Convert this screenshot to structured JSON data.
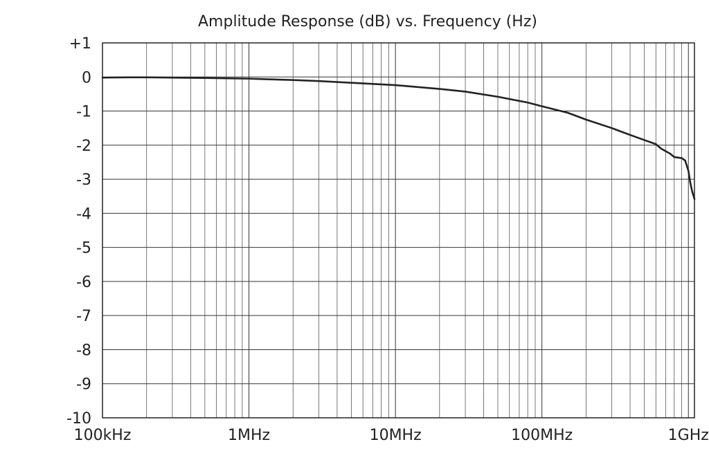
{
  "chart_data": {
    "type": "line",
    "title": "Amplitude Response (dB) vs. Frequency (Hz)",
    "xlabel": "",
    "ylabel": "",
    "x_scale": "log",
    "xlim": [
      100000,
      1100000000
    ],
    "ylim": [
      -10,
      1
    ],
    "grid": true,
    "x_ticks": [
      {
        "value": 100000,
        "label": "100kHz"
      },
      {
        "value": 1000000,
        "label": "1MHz"
      },
      {
        "value": 10000000,
        "label": "10MHz"
      },
      {
        "value": 100000000,
        "label": "100MHz"
      },
      {
        "value": 1000000000,
        "label": "1GHz"
      }
    ],
    "y_ticks": [
      {
        "value": 1,
        "label": "+1"
      },
      {
        "value": 0,
        "label": "0"
      },
      {
        "value": -1,
        "label": "-1"
      },
      {
        "value": -2,
        "label": "-2"
      },
      {
        "value": -3,
        "label": "-3"
      },
      {
        "value": -4,
        "label": "-4"
      },
      {
        "value": -5,
        "label": "-5"
      },
      {
        "value": -6,
        "label": "-6"
      },
      {
        "value": -7,
        "label": "-7"
      },
      {
        "value": -8,
        "label": "-8"
      },
      {
        "value": -9,
        "label": "-9"
      },
      {
        "value": -10,
        "label": "-10"
      }
    ],
    "series": [
      {
        "color": "#222222",
        "points": [
          [
            100000,
            -0.02
          ],
          [
            150000,
            -0.01
          ],
          [
            200000,
            -0.01
          ],
          [
            300000,
            -0.02
          ],
          [
            500000,
            -0.03
          ],
          [
            1000000,
            -0.05
          ],
          [
            2000000,
            -0.09
          ],
          [
            3000000,
            -0.12
          ],
          [
            5000000,
            -0.17
          ],
          [
            10000000,
            -0.24
          ],
          [
            20000000,
            -0.35
          ],
          [
            30000000,
            -0.43
          ],
          [
            50000000,
            -0.58
          ],
          [
            80000000,
            -0.75
          ],
          [
            100000000,
            -0.86
          ],
          [
            150000000,
            -1.05
          ],
          [
            200000000,
            -1.25
          ],
          [
            300000000,
            -1.5
          ],
          [
            400000000,
            -1.7
          ],
          [
            500000000,
            -1.85
          ],
          [
            600000000,
            -1.97
          ],
          [
            650000000,
            -2.1
          ],
          [
            750000000,
            -2.25
          ],
          [
            800000000,
            -2.35
          ],
          [
            900000000,
            -2.38
          ],
          [
            950000000,
            -2.45
          ],
          [
            1000000000,
            -2.75
          ],
          [
            1030000000,
            -3.1
          ],
          [
            1060000000,
            -3.35
          ],
          [
            1100000000,
            -3.58
          ]
        ]
      }
    ]
  }
}
